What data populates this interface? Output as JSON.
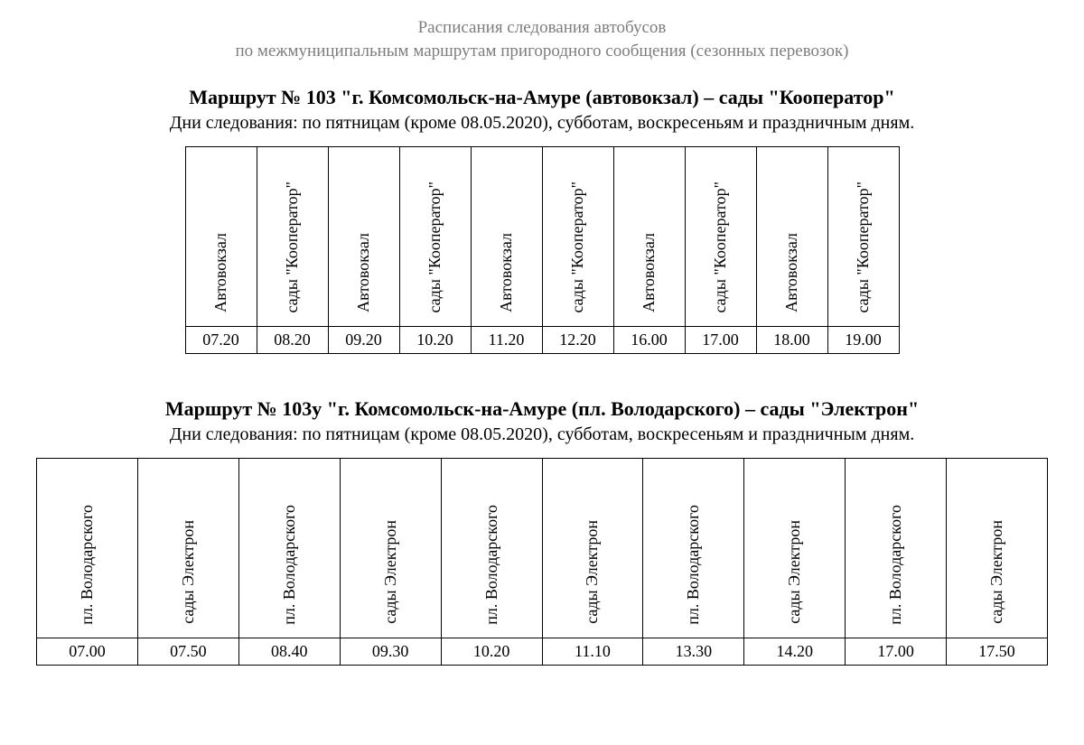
{
  "header": {
    "line1": "Расписания следования автобусов",
    "line2": "по межмуниципальным маршрутам пригородного сообщения (сезонных перевозок)"
  },
  "routes": [
    {
      "title": "Маршрут № 103 \"г. Комсомольск-на-Амуре (автовокзал) – сады \"Кооператор\"",
      "days": "Дни следования: по пятницам (кроме 08.05.2020), субботам, воскресеньям и праздничным дням.",
      "table_class": "t1",
      "columns": [
        {
          "label": "Автовокзал",
          "time": "07.20"
        },
        {
          "label": "сады \"Кооператор\"",
          "time": "08.20"
        },
        {
          "label": "Автовокзал",
          "time": "09.20"
        },
        {
          "label": "сады \"Кооператор\"",
          "time": "10.20"
        },
        {
          "label": "Автовокзал",
          "time": "11.20"
        },
        {
          "label": "сады \"Кооператор\"",
          "time": "12.20"
        },
        {
          "label": "Автовокзал",
          "time": "16.00"
        },
        {
          "label": "сады \"Кооператор\"",
          "time": "17.00"
        },
        {
          "label": "Автовокзал",
          "time": "18.00"
        },
        {
          "label": "сады \"Кооператор\"",
          "time": "19.00"
        }
      ]
    },
    {
      "title": "Маршрут № 103у \"г. Комсомольск-на-Амуре (пл. Володарского) – сады \"Электрон\"",
      "days": "Дни следования: по пятницам (кроме 08.05.2020), субботам, воскресеньям и праздничным дням.",
      "table_class": "t2",
      "columns": [
        {
          "label": "пл. Володарского",
          "time": "07.00"
        },
        {
          "label": "сады Электрон",
          "time": "07.50"
        },
        {
          "label": "пл. Володарского",
          "time": "08.40"
        },
        {
          "label": "сады Электрон",
          "time": "09.30"
        },
        {
          "label": "пл. Володарского",
          "time": "10.20"
        },
        {
          "label": "сады Электрон",
          "time": "11.10"
        },
        {
          "label": "пл. Володарского",
          "time": "13.30"
        },
        {
          "label": "сады Электрон",
          "time": "14.20"
        },
        {
          "label": "пл. Володарского",
          "time": "17.00"
        },
        {
          "label": "сады Электрон",
          "time": "17.50"
        }
      ]
    }
  ]
}
